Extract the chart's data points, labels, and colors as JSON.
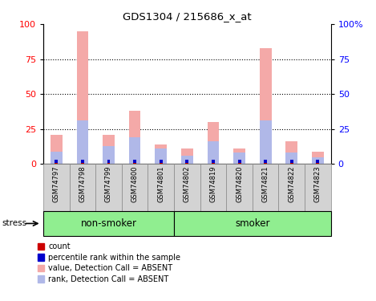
{
  "title": "GDS1304 / 215686_x_at",
  "samples": [
    "GSM74797",
    "GSM74798",
    "GSM74799",
    "GSM74800",
    "GSM74801",
    "GSM74802",
    "GSM74819",
    "GSM74820",
    "GSM74821",
    "GSM74822",
    "GSM74823"
  ],
  "value_absent": [
    21,
    95,
    21,
    38,
    14,
    11,
    30,
    11,
    83,
    16,
    9
  ],
  "rank_absent": [
    9,
    31,
    13,
    19,
    11,
    6,
    16,
    8,
    31,
    8,
    5
  ],
  "count_val": [
    1,
    1,
    1,
    1,
    1,
    1,
    1,
    1,
    1,
    1,
    1
  ],
  "pct_rank_val": [
    2,
    2,
    2,
    2,
    2,
    2,
    2,
    2,
    2,
    2,
    2
  ],
  "non_smoker_indices": [
    0,
    1,
    2,
    3,
    4
  ],
  "smoker_indices": [
    5,
    6,
    7,
    8,
    9,
    10
  ],
  "color_value_absent": "#f4a9a8",
  "color_rank_absent": "#b0b8e8",
  "color_count": "#cc0000",
  "color_percentile_rank": "#0000cc",
  "ylim": [
    0,
    100
  ],
  "yticks": [
    0,
    25,
    50,
    75,
    100
  ],
  "non_smoker_label": "non-smoker",
  "smoker_label": "smoker",
  "stress_label": "stress",
  "group_bg_color": "#90ee90",
  "sample_bg_color": "#d3d3d3",
  "legend_items": [
    {
      "color": "#cc0000",
      "label": "count"
    },
    {
      "color": "#0000cc",
      "label": "percentile rank within the sample"
    },
    {
      "color": "#f4a9a8",
      "label": "value, Detection Call = ABSENT"
    },
    {
      "color": "#b0b8e8",
      "label": "rank, Detection Call = ABSENT"
    }
  ]
}
